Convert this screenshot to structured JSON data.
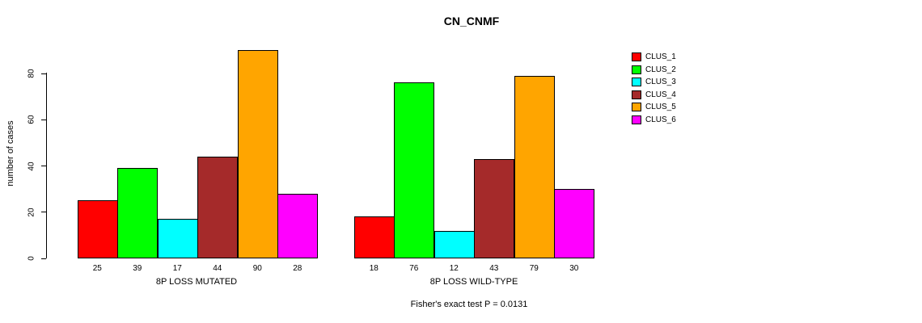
{
  "chart_data": {
    "type": "bar",
    "title": "CN_CNMF",
    "ylabel": "number of cases",
    "xlabel": "",
    "ylim": [
      0,
      90
    ],
    "yticks": [
      0,
      20,
      40,
      60,
      80
    ],
    "grid": false,
    "legend_position": "right",
    "categories": [
      "8P LOSS MUTATED",
      "8P LOSS WILD-TYPE"
    ],
    "series": [
      {
        "name": "CLUS_1",
        "color": "#FF0000",
        "values": [
          25,
          18
        ]
      },
      {
        "name": "CLUS_2",
        "color": "#00FF00",
        "values": [
          39,
          76
        ]
      },
      {
        "name": "CLUS_3",
        "color": "#00FFFF",
        "values": [
          17,
          12
        ]
      },
      {
        "name": "CLUS_4",
        "color": "#A52A2A",
        "values": [
          44,
          43
        ]
      },
      {
        "name": "CLUS_5",
        "color": "#FFA500",
        "values": [
          90,
          79
        ]
      },
      {
        "name": "CLUS_6",
        "color": "#FF00FF",
        "values": [
          28,
          30
        ]
      }
    ],
    "footnote": "Fisher's exact test P = 0.0131"
  }
}
